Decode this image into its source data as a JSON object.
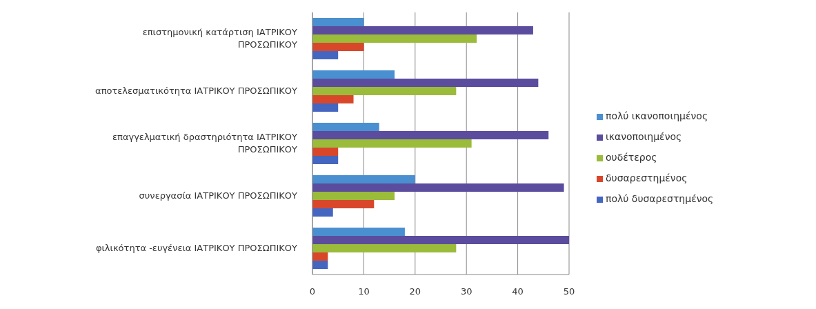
{
  "chart_data": {
    "type": "bar",
    "orientation": "horizontal",
    "categories": [
      "επιστημονική κατάρτιση  ΙΑΤΡΙΚΟΥ ΠΡΟΣΩΠΙΚΟΥ",
      "αποτελεσματικότητα  ΙΑΤΡΙΚΟΥ ΠΡΟΣΩΠΙΚΟΥ",
      "επαγγελματική δραστηριότητα ΙΑΤΡΙΚΟΥ ΠΡΟΣΩΠΙΚΟΥ",
      "συνεργασία  ΙΑΤΡΙΚΟΥ ΠΡΟΣΩΠΙΚΟΥ",
      "φιλικότητα -ευγένεια  ΙΑΤΡΙΚΟΥ ΠΡΟΣΩΠΙΚΟΥ"
    ],
    "series": [
      {
        "name": "πολύ ικανοποιημένος",
        "color": "#4a8fd0",
        "values": [
          10,
          16,
          13,
          20,
          18
        ]
      },
      {
        "name": "ικανοποιημένος",
        "color": "#5b4c9e",
        "values": [
          43,
          44,
          46,
          49,
          50
        ]
      },
      {
        "name": "ουδέτερος",
        "color": "#9bbb3b",
        "values": [
          32,
          28,
          31,
          16,
          28
        ]
      },
      {
        "name": "δυσαρεστημένος",
        "color": "#d9472b",
        "values": [
          10,
          8,
          5,
          12,
          3
        ]
      },
      {
        "name": "πολύ δυσαρεστημένος",
        "color": "#4466c0",
        "values": [
          5,
          5,
          5,
          4,
          3
        ]
      }
    ],
    "xlim": [
      0,
      50
    ],
    "xticks": [
      0,
      10,
      20,
      30,
      40,
      50
    ],
    "grid": "x",
    "legend": "right"
  }
}
